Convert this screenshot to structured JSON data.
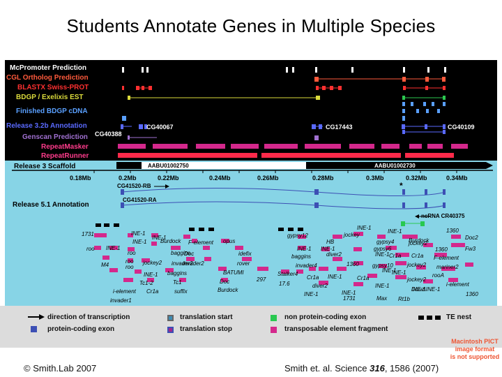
{
  "title": "Students Annotate Genes in Multiple Species",
  "tracks": [
    {
      "label": "McPromoter Prediction",
      "color": "#ffffff"
    },
    {
      "label": "CGL Ortholog Prediction",
      "color": "#ff5a3c"
    },
    {
      "label": "BLASTX Swiss-PROT",
      "color": "#ff3030"
    },
    {
      "label": "BDGP / Exelixis EST",
      "color": "#dcdc3c"
    },
    {
      "label": "Finished BDGP cDNA",
      "color": "#5aa0ff"
    },
    {
      "label": "Release 3.2b Annotation",
      "color": "#5a6aff"
    },
    {
      "label": "Genscan Prediction",
      "color": "#a070d0"
    },
    {
      "label": "RepeatMasker",
      "color": "#ff3c8c"
    },
    {
      "label": "RepeatRunner",
      "color": "#ff3c8c"
    }
  ],
  "gene_labels": {
    "cg40388": "CG40388",
    "cg40067": "CG40067",
    "cg17443": "CG17443",
    "cg40109": "CG40109"
  },
  "scaffold": {
    "label": "Release 3 Scaffold",
    "contig_left": "AABU01002750",
    "contig_right": "AABU01002730",
    "ticks": [
      "0.18Mb",
      "0.2Mb",
      "0.22Mb",
      "0.24Mb",
      "0.26Mb",
      "0.28Mb",
      "0.3Mb",
      "0.32Mb",
      "0.34Mb"
    ]
  },
  "release51": {
    "label": "Release 5.1 Annotation",
    "rb": "CG41520-RB",
    "ra": "CG41520-RA",
    "star": "*",
    "ncrna": "ncRNA CR40375"
  },
  "te_labels": [
    "1731",
    "INE-1",
    "roo",
    "INE-1",
    "INE-1",
    "roo",
    "M4",
    "roo",
    "roo",
    "jockey2",
    "INE-1",
    "Tc1-2",
    "Cr1a",
    "i-element",
    "invader1",
    "INE-1",
    "Burdock",
    "F-element",
    "opus",
    "baggins",
    "Doc",
    "invader2",
    "baggins",
    "Tc1",
    "suffix",
    "invader2",
    "idefix",
    "rover",
    "BATUMI",
    "Doc",
    "Burdock",
    "297",
    "Stalker4",
    "17.6",
    "gypsy12",
    "INE-1",
    "Cr1a",
    "diver2",
    "INE-1",
    "jockey",
    "HB",
    "INE-1",
    "baggins",
    "invader4",
    "diver2",
    "1360",
    "INE-1",
    "INE-1",
    "1731",
    "INE-1",
    "gypsy4",
    "gypsy6",
    "INE-1",
    "gypsy10",
    "Cr1a",
    "INE-1",
    "Max",
    "Rt1b",
    "INE-1",
    "jockey2",
    "jockey2",
    "INE-1",
    "Cr1a",
    "Cr1a",
    "INE-1",
    "jockey2",
    "Burdock",
    "1360",
    "F-element",
    "mariner2",
    "rooA",
    "INE-1",
    "Doc2",
    "Fw3",
    "1360",
    "Dbuz\\INE-1",
    "i-element",
    "1360"
  ],
  "legend": {
    "direction": "direction of transcription",
    "coding": "protein-coding exon",
    "tstart": "translation start",
    "tstop": "translation stop",
    "noncoding": "non protein-coding exon",
    "te": "transposable element fragment",
    "nest": "TE nest"
  },
  "colors": {
    "black_panel": "#000000",
    "cyan_panel": "#87d4e6",
    "coding": "#3c4fb4",
    "noncoding": "#28c850",
    "te": "#d4288c",
    "tstart": "#3c8cb4",
    "tstop": "#a0288c"
  },
  "footer_left": "© Smith.Lab 2007",
  "footer_right_pre": "Smith et. al. Science ",
  "footer_right_vol": "316",
  "footer_right_post": ", 1586 (2007)",
  "pict_note": [
    "Macintosh PICT",
    "image format",
    "is not supported"
  ]
}
